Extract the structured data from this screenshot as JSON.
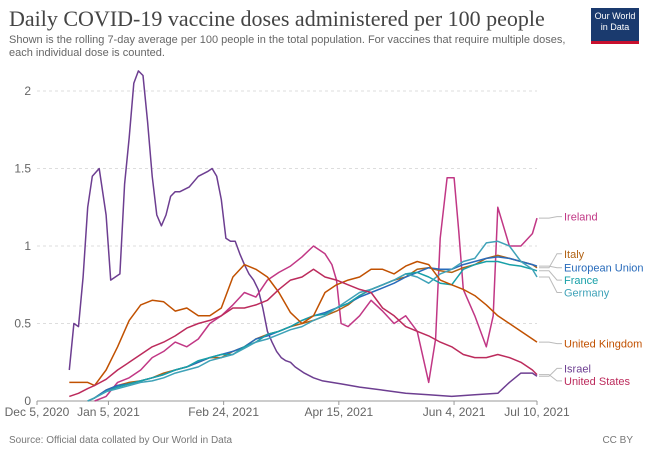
{
  "title": "Daily COVID-19 vaccine doses administered per 100 people",
  "subtitle": "Shown is the rolling 7-day average per 100 people in the total population. For vaccines that require multiple doses, each individual dose is counted.",
  "logo": {
    "line1": "Our World",
    "line2": "in Data"
  },
  "source": "Source: Official data collated by Our World in Data",
  "license": "CC BY",
  "chart_data": {
    "type": "line",
    "title": "Daily COVID-19 vaccine doses administered per 100 people",
    "xlabel": "",
    "ylabel": "",
    "x_unit": "days since Dec 5, 2020",
    "xlim": [
      0,
      217
    ],
    "ylim": [
      0,
      2.1
    ],
    "yticks": [
      0,
      0.5,
      1,
      1.5,
      2
    ],
    "ytick_labels": [
      "0",
      "0.5",
      "1",
      "1.5",
      "2"
    ],
    "xticks": [
      0,
      31,
      81,
      131,
      181,
      217
    ],
    "xtick_labels": [
      "Dec 5, 2020",
      "Jan 5, 2021",
      "Feb 24, 2021",
      "Apr 15, 2021",
      "Jun 4, 2021",
      "Jul 10, 2021"
    ],
    "grid": true,
    "series": [
      {
        "name": "Israel",
        "color": "#6d3e91",
        "label": "Israel",
        "x": [
          14,
          16,
          18,
          20,
          22,
          24,
          27,
          28,
          30,
          32,
          34,
          36,
          38,
          40,
          42,
          44,
          46,
          48,
          50,
          52,
          54,
          56,
          58,
          60,
          62,
          66,
          70,
          74,
          76,
          78,
          80,
          82,
          84,
          86,
          88,
          90,
          92,
          94,
          96,
          98,
          100,
          102,
          104,
          106,
          108,
          110,
          112,
          116,
          120,
          124,
          128,
          132,
          136,
          140,
          150,
          160,
          170,
          180,
          190,
          200,
          205,
          210,
          215,
          217
        ],
        "y": [
          0.2,
          0.5,
          0.48,
          0.8,
          1.25,
          1.45,
          1.5,
          1.4,
          1.2,
          0.78,
          0.8,
          0.82,
          1.4,
          1.7,
          2.05,
          2.13,
          2.1,
          1.8,
          1.45,
          1.2,
          1.13,
          1.2,
          1.32,
          1.35,
          1.35,
          1.38,
          1.45,
          1.48,
          1.5,
          1.45,
          1.3,
          1.05,
          1.03,
          1.03,
          0.95,
          0.88,
          0.82,
          0.78,
          0.72,
          0.6,
          0.45,
          0.38,
          0.32,
          0.28,
          0.26,
          0.25,
          0.22,
          0.18,
          0.15,
          0.13,
          0.12,
          0.11,
          0.1,
          0.09,
          0.07,
          0.05,
          0.04,
          0.03,
          0.04,
          0.05,
          0.12,
          0.18,
          0.18,
          0.16
        ]
      },
      {
        "name": "Ireland",
        "color": "#c13785",
        "label": "Ireland",
        "x": [
          25,
          30,
          35,
          40,
          45,
          50,
          55,
          60,
          65,
          70,
          75,
          80,
          85,
          90,
          95,
          100,
          105,
          110,
          115,
          120,
          122,
          125,
          128,
          130,
          132,
          135,
          140,
          145,
          150,
          155,
          160,
          165,
          170,
          173,
          175,
          178,
          181,
          183,
          185,
          190,
          195,
          198,
          200,
          205,
          210,
          215,
          217
        ],
        "y": [
          0,
          0.03,
          0.12,
          0.15,
          0.2,
          0.28,
          0.32,
          0.38,
          0.35,
          0.4,
          0.5,
          0.55,
          0.62,
          0.7,
          0.67,
          0.78,
          0.83,
          0.87,
          0.93,
          1.0,
          0.98,
          0.95,
          0.88,
          0.78,
          0.5,
          0.48,
          0.55,
          0.65,
          0.58,
          0.5,
          0.55,
          0.45,
          0.12,
          0.4,
          1.05,
          1.44,
          1.44,
          1.1,
          0.72,
          0.55,
          0.35,
          0.55,
          1.25,
          1.0,
          1.0,
          1.08,
          1.18
        ]
      },
      {
        "name": "Italy",
        "color": "#b16214",
        "label": "Italy",
        "x": [
          22,
          25,
          30,
          35,
          40,
          45,
          50,
          55,
          60,
          65,
          70,
          75,
          80,
          85,
          90,
          95,
          100,
          105,
          110,
          115,
          120,
          125,
          130,
          135,
          140,
          145,
          150,
          155,
          160,
          165,
          170,
          175,
          180,
          185,
          190,
          195,
          200,
          205,
          210,
          215,
          217
        ],
        "y": [
          0,
          0.02,
          0.07,
          0.1,
          0.12,
          0.13,
          0.15,
          0.18,
          0.2,
          0.22,
          0.25,
          0.28,
          0.28,
          0.32,
          0.35,
          0.4,
          0.43,
          0.45,
          0.48,
          0.5,
          0.52,
          0.55,
          0.58,
          0.62,
          0.68,
          0.72,
          0.75,
          0.78,
          0.8,
          0.85,
          0.86,
          0.84,
          0.83,
          0.86,
          0.88,
          0.92,
          0.94,
          0.92,
          0.9,
          0.88,
          0.86
        ]
      },
      {
        "name": "European Union",
        "color": "#286bbb",
        "label": "European Union",
        "x": [
          22,
          25,
          30,
          35,
          40,
          45,
          50,
          55,
          60,
          65,
          70,
          75,
          80,
          85,
          90,
          95,
          100,
          105,
          110,
          115,
          120,
          125,
          130,
          135,
          140,
          145,
          150,
          155,
          160,
          165,
          170,
          175,
          180,
          185,
          190,
          195,
          200,
          205,
          210,
          215,
          217
        ],
        "y": [
          0,
          0.02,
          0.07,
          0.1,
          0.11,
          0.13,
          0.15,
          0.17,
          0.2,
          0.22,
          0.25,
          0.28,
          0.3,
          0.32,
          0.35,
          0.4,
          0.42,
          0.45,
          0.48,
          0.52,
          0.55,
          0.57,
          0.6,
          0.63,
          0.67,
          0.7,
          0.73,
          0.76,
          0.8,
          0.83,
          0.86,
          0.85,
          0.85,
          0.88,
          0.9,
          0.92,
          0.93,
          0.92,
          0.9,
          0.88,
          0.87
        ]
      },
      {
        "name": "France",
        "color": "#18a0a8",
        "label": "France",
        "x": [
          22,
          25,
          30,
          35,
          40,
          45,
          50,
          55,
          60,
          65,
          70,
          75,
          80,
          85,
          90,
          95,
          100,
          105,
          110,
          115,
          120,
          125,
          130,
          135,
          140,
          145,
          150,
          155,
          160,
          165,
          170,
          175,
          180,
          185,
          190,
          195,
          200,
          205,
          210,
          215,
          217
        ],
        "y": [
          0,
          0.02,
          0.06,
          0.09,
          0.11,
          0.13,
          0.15,
          0.17,
          0.2,
          0.22,
          0.26,
          0.28,
          0.3,
          0.3,
          0.35,
          0.38,
          0.43,
          0.45,
          0.48,
          0.52,
          0.55,
          0.56,
          0.6,
          0.63,
          0.68,
          0.72,
          0.75,
          0.78,
          0.82,
          0.83,
          0.8,
          0.76,
          0.75,
          0.85,
          0.88,
          0.9,
          0.9,
          0.88,
          0.87,
          0.85,
          0.84
        ]
      },
      {
        "name": "Germany",
        "color": "#3fa2b8",
        "label": "Germany",
        "x": [
          22,
          25,
          30,
          35,
          40,
          45,
          50,
          55,
          60,
          65,
          70,
          75,
          80,
          85,
          90,
          95,
          100,
          105,
          110,
          115,
          120,
          125,
          130,
          135,
          140,
          145,
          150,
          155,
          160,
          165,
          170,
          175,
          180,
          185,
          190,
          195,
          200,
          205,
          210,
          215,
          217
        ],
        "y": [
          0,
          0.02,
          0.06,
          0.08,
          0.1,
          0.12,
          0.13,
          0.15,
          0.18,
          0.2,
          0.22,
          0.26,
          0.28,
          0.3,
          0.34,
          0.38,
          0.4,
          0.43,
          0.46,
          0.48,
          0.52,
          0.55,
          0.6,
          0.65,
          0.7,
          0.72,
          0.75,
          0.78,
          0.82,
          0.8,
          0.76,
          0.82,
          0.85,
          0.9,
          0.92,
          1.02,
          1.03,
          1.0,
          0.9,
          0.85,
          0.8
        ]
      },
      {
        "name": "United Kingdom",
        "color": "#c15101",
        "label": "United Kingdom",
        "x": [
          14,
          18,
          22,
          25,
          30,
          35,
          40,
          45,
          50,
          55,
          60,
          65,
          70,
          75,
          80,
          85,
          90,
          95,
          100,
          105,
          110,
          115,
          120,
          125,
          130,
          135,
          140,
          145,
          150,
          155,
          160,
          165,
          170,
          175,
          180,
          185,
          190,
          195,
          200,
          205,
          210,
          215,
          217
        ],
        "y": [
          0.12,
          0.12,
          0.12,
          0.1,
          0.2,
          0.35,
          0.52,
          0.62,
          0.65,
          0.64,
          0.58,
          0.6,
          0.55,
          0.55,
          0.6,
          0.8,
          0.88,
          0.85,
          0.8,
          0.7,
          0.57,
          0.5,
          0.55,
          0.7,
          0.75,
          0.78,
          0.8,
          0.85,
          0.85,
          0.82,
          0.87,
          0.9,
          0.88,
          0.78,
          0.75,
          0.72,
          0.68,
          0.62,
          0.55,
          0.5,
          0.45,
          0.4,
          0.38
        ]
      },
      {
        "name": "United States",
        "color": "#bc2b5c",
        "label": "United States",
        "x": [
          14,
          18,
          22,
          25,
          30,
          35,
          40,
          45,
          50,
          55,
          60,
          65,
          70,
          75,
          80,
          85,
          90,
          95,
          100,
          105,
          110,
          115,
          120,
          125,
          130,
          135,
          140,
          145,
          150,
          155,
          160,
          165,
          170,
          175,
          180,
          185,
          190,
          195,
          200,
          205,
          210,
          215,
          217
        ],
        "y": [
          0.03,
          0.05,
          0.08,
          0.1,
          0.14,
          0.2,
          0.25,
          0.3,
          0.35,
          0.38,
          0.42,
          0.47,
          0.5,
          0.52,
          0.55,
          0.6,
          0.6,
          0.62,
          0.65,
          0.72,
          0.78,
          0.8,
          0.85,
          0.8,
          0.78,
          0.75,
          0.72,
          0.7,
          0.6,
          0.55,
          0.48,
          0.45,
          0.42,
          0.38,
          0.35,
          0.3,
          0.28,
          0.28,
          0.3,
          0.28,
          0.25,
          0.2,
          0.17
        ]
      }
    ]
  }
}
